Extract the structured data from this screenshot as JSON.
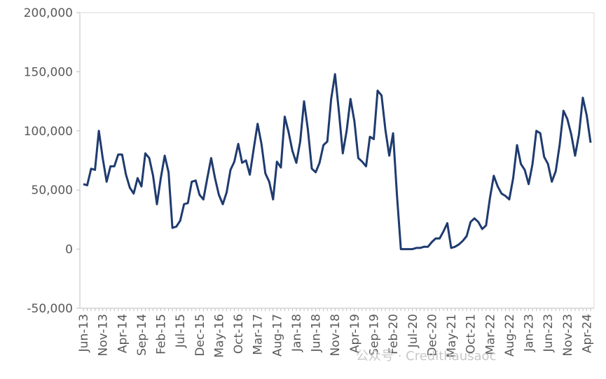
{
  "watermark": {
    "text": "公众号 · Credithausaoc"
  },
  "chart_data": {
    "type": "line",
    "title": "",
    "xlabel": "",
    "ylabel": "",
    "ylim": [
      -50000,
      200000
    ],
    "y_ticks": [
      -50000,
      0,
      50000,
      100000,
      150000,
      200000
    ],
    "y_tick_labels": [
      "-50,000",
      "0",
      "50,000",
      "100,000",
      "150,000",
      "200,000"
    ],
    "x_tick_labels": [
      "Jun-13",
      "Nov-13",
      "Apr-14",
      "Sep-14",
      "Feb-15",
      "Jul-15",
      "Dec-15",
      "May-16",
      "Oct-16",
      "Mar-17",
      "Aug-17",
      "Jan-18",
      "Jun-18",
      "Nov-18",
      "Apr-19",
      "Sep-19",
      "Feb-20",
      "Jul-20",
      "Dec-20",
      "May-21",
      "Oct-21",
      "Mar-22",
      "Aug-22",
      "Jan-23",
      "Jun-23",
      "Nov-23",
      "Apr-24"
    ],
    "grid": false,
    "legend": "none",
    "line_color": "#1f3b6f",
    "start_month": "Jun-13",
    "interval": "monthly",
    "series": [
      {
        "values": [
          55000,
          54000,
          68000,
          67000,
          100000,
          77000,
          57000,
          70000,
          70000,
          80000,
          80000,
          63000,
          52000,
          47000,
          60000,
          53000,
          81000,
          77000,
          62000,
          38000,
          60000,
          79000,
          65000,
          18000,
          19000,
          24000,
          38000,
          39000,
          57000,
          58000,
          46000,
          42000,
          60000,
          77000,
          60000,
          46000,
          38000,
          48000,
          67000,
          74000,
          89000,
          73000,
          75000,
          63000,
          85000,
          106000,
          89000,
          64000,
          57000,
          42000,
          74000,
          69000,
          112000,
          99000,
          83000,
          73000,
          91000,
          125000,
          101000,
          68000,
          65000,
          73000,
          88000,
          91000,
          127000,
          148000,
          116000,
          81000,
          100000,
          127000,
          108000,
          77000,
          74000,
          70000,
          95000,
          93000,
          134000,
          130000,
          101000,
          79000,
          98000,
          45000,
          0,
          0,
          0,
          0,
          1000,
          1000,
          2000,
          2000,
          6000,
          9000,
          9000,
          15000,
          22000,
          1000,
          2000,
          4000,
          7000,
          11000,
          23000,
          26000,
          23000,
          17000,
          20000,
          43000,
          62000,
          53000,
          47000,
          45000,
          42000,
          60000,
          88000,
          72000,
          67000,
          55000,
          72000,
          100000,
          98000,
          78000,
          72000,
          57000,
          66000,
          88000,
          117000,
          110000,
          97000,
          79000,
          97000,
          128000,
          113000,
          90000
        ]
      }
    ]
  }
}
